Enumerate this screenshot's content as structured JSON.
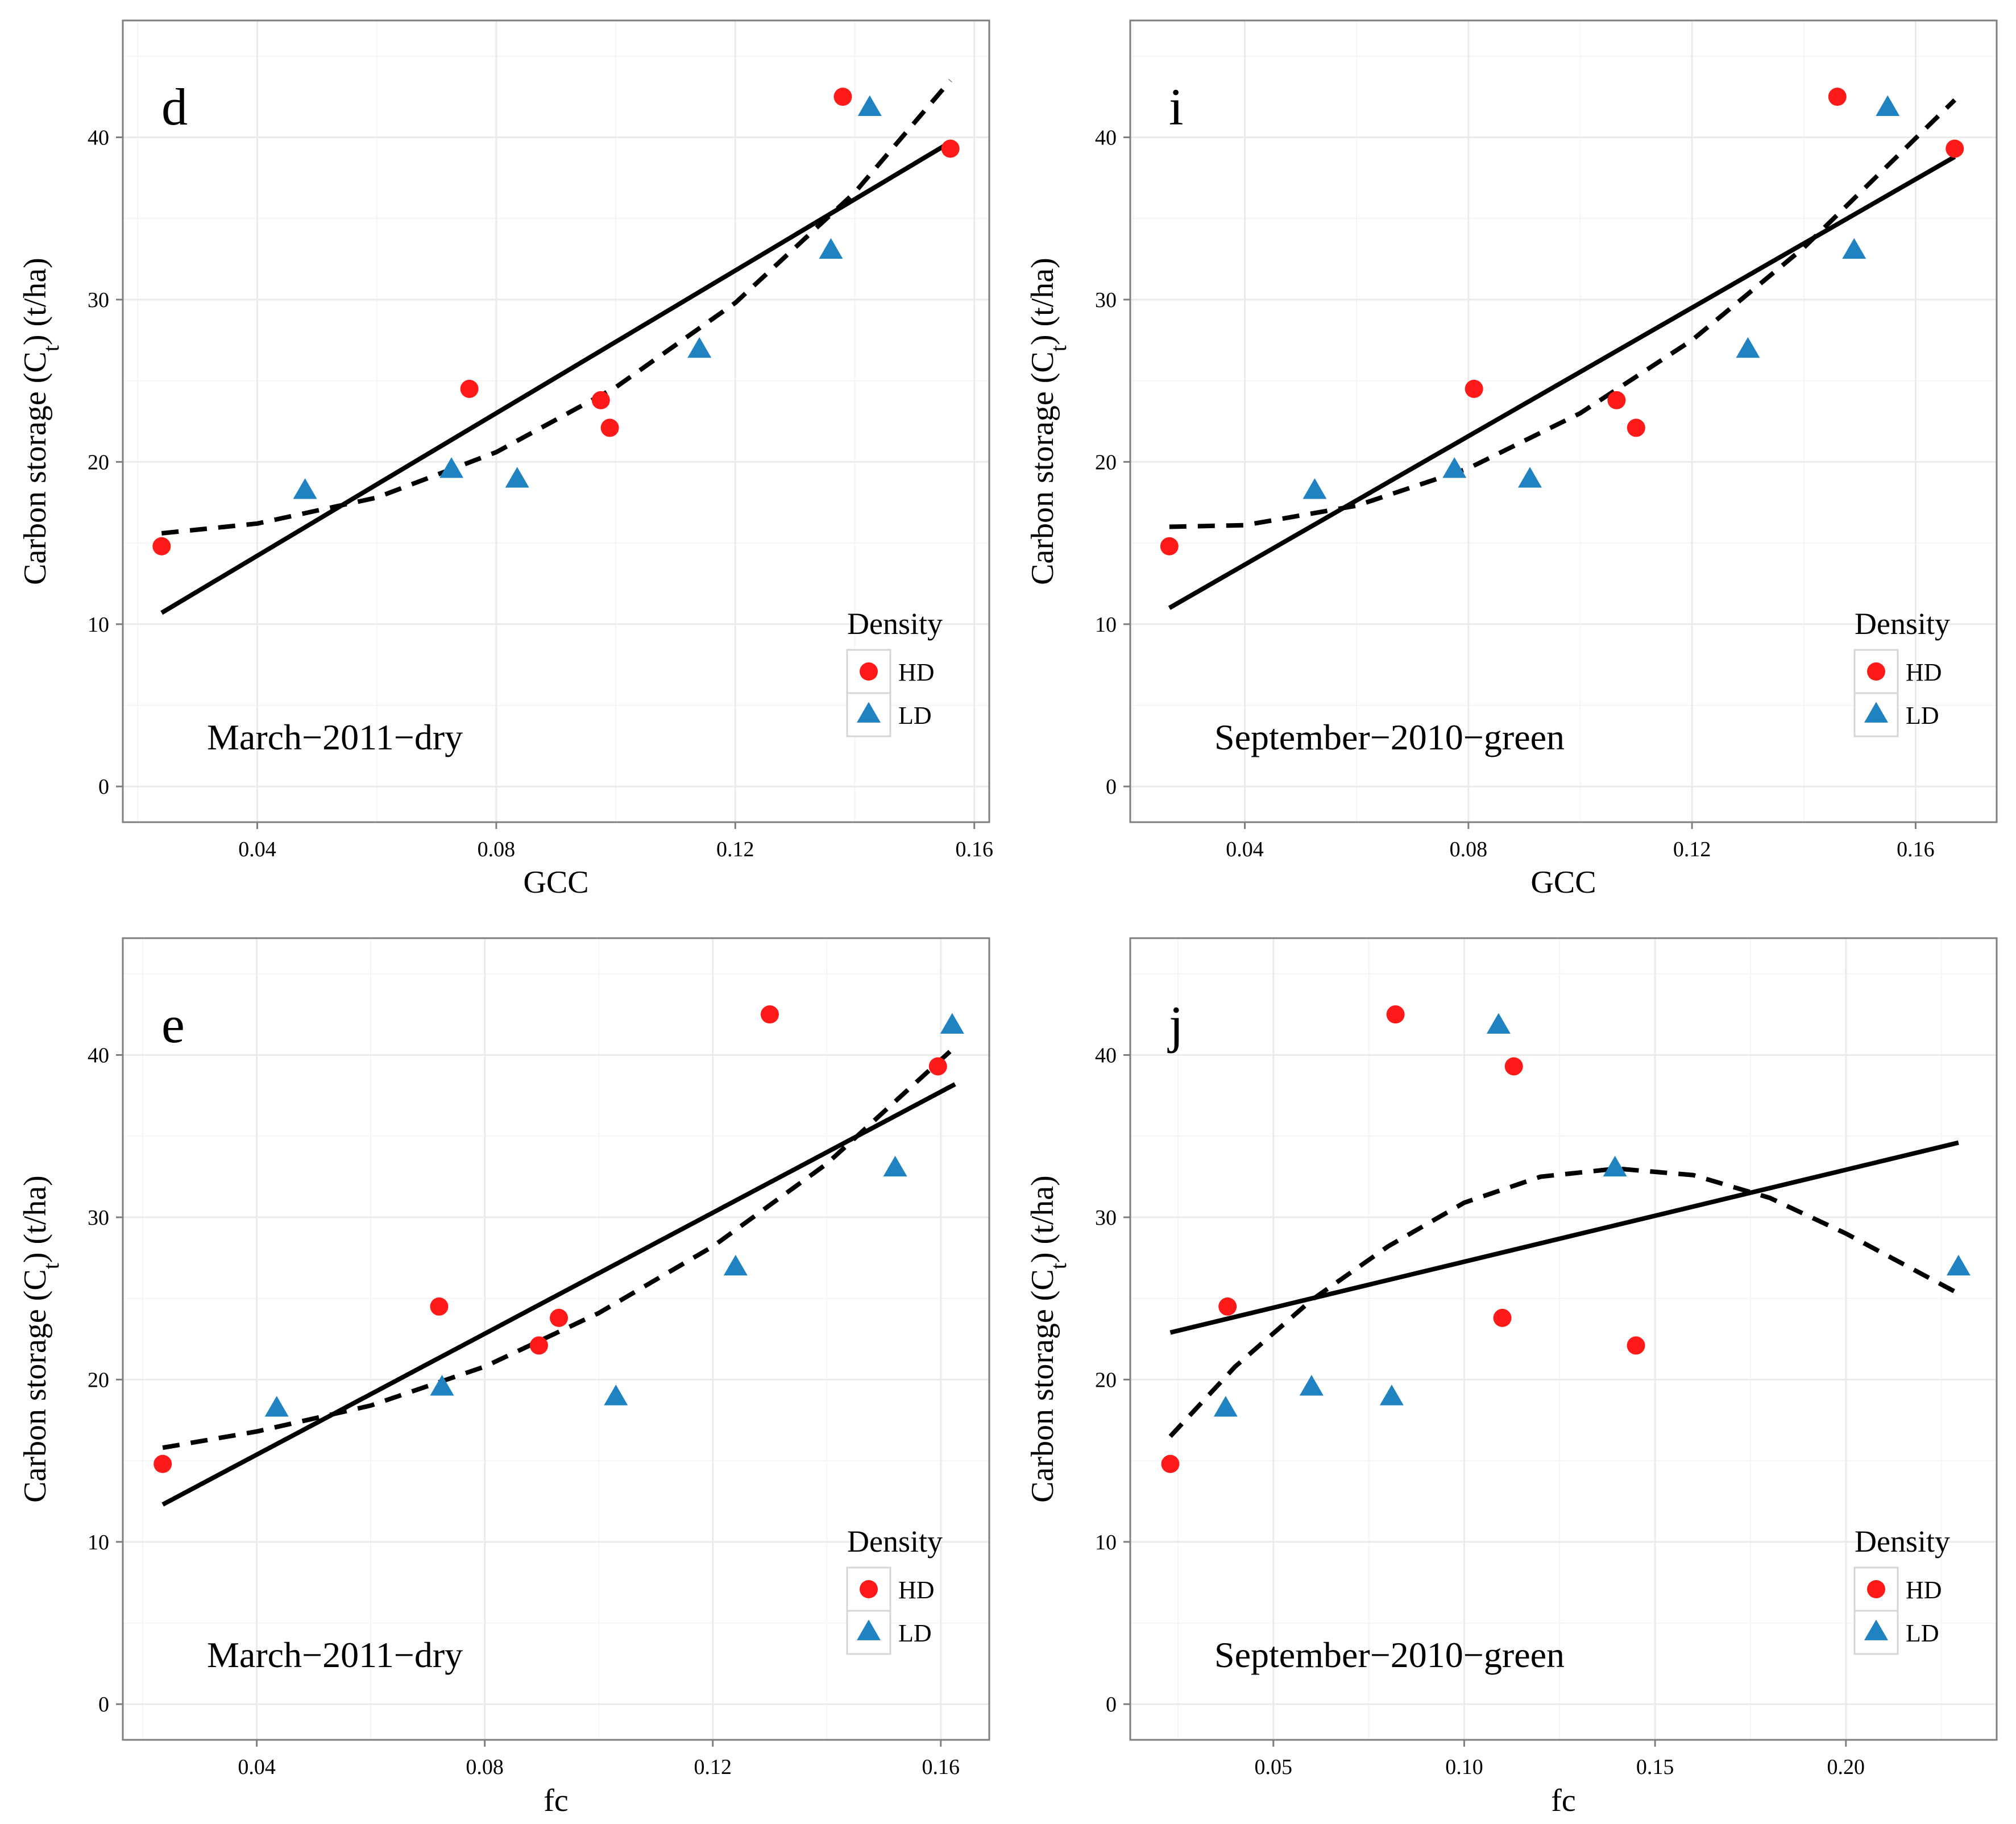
{
  "colors": {
    "HD": "#ff1a1a",
    "LD": "#1f82c1",
    "grid_major": "#ebebeb",
    "grid_minor": "#f5f5f5",
    "panel_border": "#7f7f7f",
    "fit": "#000000"
  },
  "chart_data": [
    {
      "type": "scatter",
      "panel_letter": "d",
      "caption": "March−2011−dry",
      "xlabel": "GCC",
      "ylabel": "Carbon storage (C",
      "ylabel_sub": "t",
      "ylabel_tail": ") (t/ha)",
      "xlim": [
        0.0175,
        0.1625
      ],
      "ylim": [
        -2.2,
        47.2
      ],
      "xticks": [
        0.04,
        0.08,
        0.12,
        0.16
      ],
      "xtick_labels": [
        "0.04",
        "0.08",
        "0.12",
        "0.16"
      ],
      "yticks": [
        0,
        10,
        20,
        30,
        40
      ],
      "ytick_labels": [
        "0",
        "10",
        "20",
        "30",
        "40"
      ],
      "legend": {
        "title": "Density",
        "entries": [
          "HD",
          "LD"
        ],
        "position": "bottom-right"
      },
      "series": [
        {
          "name": "HD",
          "marker": "circle",
          "points": [
            [
              0.024,
              14.8
            ],
            [
              0.0755,
              24.5
            ],
            [
              0.0975,
              23.8
            ],
            [
              0.099,
              22.1
            ],
            [
              0.138,
              42.5
            ],
            [
              0.156,
              39.3
            ]
          ]
        },
        {
          "name": "LD",
          "marker": "triangle",
          "points": [
            [
              0.048,
              18.2
            ],
            [
              0.0725,
              19.5
            ],
            [
              0.0835,
              18.9
            ],
            [
              0.114,
              26.9
            ],
            [
              0.136,
              33.0
            ],
            [
              0.1425,
              41.8
            ]
          ]
        }
      ],
      "fits": [
        {
          "name": "linear",
          "style": "solid",
          "x": [
            0.024,
            0.156
          ],
          "y": [
            10.7,
            39.7
          ]
        },
        {
          "name": "quadratic",
          "style": "dashed",
          "x": [
            0.024,
            0.04,
            0.06,
            0.08,
            0.1,
            0.12,
            0.14,
            0.156
          ],
          "y": [
            15.6,
            16.2,
            17.8,
            20.6,
            24.6,
            29.8,
            36.6,
            43.5
          ]
        }
      ]
    },
    {
      "type": "scatter",
      "panel_letter": "i",
      "caption": "September−2010−green",
      "xlabel": "GCC",
      "ylabel": "Carbon storage (C",
      "ylabel_sub": "t",
      "ylabel_tail": ") (t/ha)",
      "xlim": [
        0.0195,
        0.1745
      ],
      "ylim": [
        -2.2,
        47.2
      ],
      "xticks": [
        0.04,
        0.08,
        0.12,
        0.16
      ],
      "xtick_labels": [
        "0.04",
        "0.08",
        "0.12",
        "0.16"
      ],
      "yticks": [
        0,
        10,
        20,
        30,
        40
      ],
      "ytick_labels": [
        "0",
        "10",
        "20",
        "30",
        "40"
      ],
      "legend": {
        "title": "Density",
        "entries": [
          "HD",
          "LD"
        ],
        "position": "bottom-right"
      },
      "series": [
        {
          "name": "HD",
          "marker": "circle",
          "points": [
            [
              0.0265,
              14.8
            ],
            [
              0.081,
              24.5
            ],
            [
              0.1065,
              23.8
            ],
            [
              0.11,
              22.1
            ],
            [
              0.146,
              42.5
            ],
            [
              0.167,
              39.3
            ]
          ]
        },
        {
          "name": "LD",
          "marker": "triangle",
          "points": [
            [
              0.0525,
              18.2
            ],
            [
              0.0775,
              19.5
            ],
            [
              0.091,
              18.9
            ],
            [
              0.13,
              26.9
            ],
            [
              0.149,
              33.0
            ],
            [
              0.155,
              41.8
            ]
          ]
        }
      ],
      "fits": [
        {
          "name": "linear",
          "style": "solid",
          "x": [
            0.0265,
            0.167
          ],
          "y": [
            11.0,
            38.8
          ]
        },
        {
          "name": "quadratic",
          "style": "dashed",
          "x": [
            0.0265,
            0.04,
            0.06,
            0.08,
            0.1,
            0.12,
            0.14,
            0.167
          ],
          "y": [
            16.0,
            16.1,
            17.3,
            19.6,
            23.0,
            27.5,
            33.2,
            42.3
          ]
        }
      ]
    },
    {
      "type": "scatter",
      "panel_letter": "e",
      "caption": "March−2011−dry",
      "xlabel": "fc",
      "ylabel": "Carbon storage (C",
      "ylabel_sub": "t",
      "ylabel_tail": ") (t/ha)",
      "xlim": [
        0.0165,
        0.1685
      ],
      "ylim": [
        -2.2,
        47.2
      ],
      "xticks": [
        0.04,
        0.08,
        0.12,
        0.16
      ],
      "xtick_labels": [
        "0.04",
        "0.08",
        "0.12",
        "0.16"
      ],
      "yticks": [
        0,
        10,
        20,
        30,
        40
      ],
      "ytick_labels": [
        "0",
        "10",
        "20",
        "30",
        "40"
      ],
      "legend": {
        "title": "Density",
        "entries": [
          "HD",
          "LD"
        ],
        "position": "bottom-right"
      },
      "series": [
        {
          "name": "HD",
          "marker": "circle",
          "points": [
            [
              0.0235,
              14.8
            ],
            [
              0.072,
              24.5
            ],
            [
              0.0895,
              22.1
            ],
            [
              0.093,
              23.8
            ],
            [
              0.13,
              42.5
            ],
            [
              0.1595,
              39.3
            ]
          ]
        },
        {
          "name": "LD",
          "marker": "triangle",
          "points": [
            [
              0.0435,
              18.2
            ],
            [
              0.0725,
              19.5
            ],
            [
              0.103,
              18.9
            ],
            [
              0.124,
              26.9
            ],
            [
              0.152,
              33.0
            ],
            [
              0.162,
              41.8
            ]
          ]
        }
      ],
      "fits": [
        {
          "name": "linear",
          "style": "solid",
          "x": [
            0.0235,
            0.1625
          ],
          "y": [
            12.3,
            38.2
          ]
        },
        {
          "name": "quadratic",
          "style": "dashed",
          "x": [
            0.0235,
            0.04,
            0.06,
            0.08,
            0.1,
            0.12,
            0.14,
            0.1625
          ],
          "y": [
            15.8,
            16.8,
            18.4,
            20.8,
            24.1,
            28.2,
            33.3,
            40.5
          ]
        }
      ]
    },
    {
      "type": "scatter",
      "panel_letter": "j",
      "caption": "September−2010−green",
      "xlabel": "fc",
      "ylabel": "Carbon storage (C",
      "ylabel_sub": "t",
      "ylabel_tail": ") (t/ha)",
      "xlim": [
        0.0125,
        0.2395
      ],
      "ylim": [
        -2.2,
        47.2
      ],
      "xticks": [
        0.05,
        0.1,
        0.15,
        0.2
      ],
      "xtick_labels": [
        "0.05",
        "0.10",
        "0.15",
        "0.20"
      ],
      "yticks": [
        0,
        10,
        20,
        30,
        40
      ],
      "ytick_labels": [
        "0",
        "10",
        "20",
        "30",
        "40"
      ],
      "legend": {
        "title": "Density",
        "entries": [
          "HD",
          "LD"
        ],
        "position": "bottom-right"
      },
      "series": [
        {
          "name": "HD",
          "marker": "circle",
          "points": [
            [
              0.023,
              14.8
            ],
            [
              0.038,
              24.5
            ],
            [
              0.082,
              42.5
            ],
            [
              0.11,
              23.8
            ],
            [
              0.113,
              39.3
            ],
            [
              0.145,
              22.1
            ]
          ]
        },
        {
          "name": "LD",
          "marker": "triangle",
          "points": [
            [
              0.0375,
              18.2
            ],
            [
              0.06,
              19.5
            ],
            [
              0.081,
              18.9
            ],
            [
              0.109,
              41.8
            ],
            [
              0.1395,
              33.0
            ],
            [
              0.2295,
              26.9
            ]
          ]
        }
      ],
      "fits": [
        {
          "name": "linear",
          "style": "solid",
          "x": [
            0.023,
            0.2295
          ],
          "y": [
            22.9,
            34.6
          ]
        },
        {
          "name": "quadratic",
          "style": "dashed",
          "x": [
            0.023,
            0.04,
            0.06,
            0.08,
            0.1,
            0.12,
            0.14,
            0.16,
            0.18,
            0.2,
            0.2295
          ],
          "y": [
            16.5,
            20.8,
            24.9,
            28.2,
            30.9,
            32.5,
            33.0,
            32.6,
            31.2,
            29.0,
            25.3
          ]
        }
      ]
    }
  ]
}
